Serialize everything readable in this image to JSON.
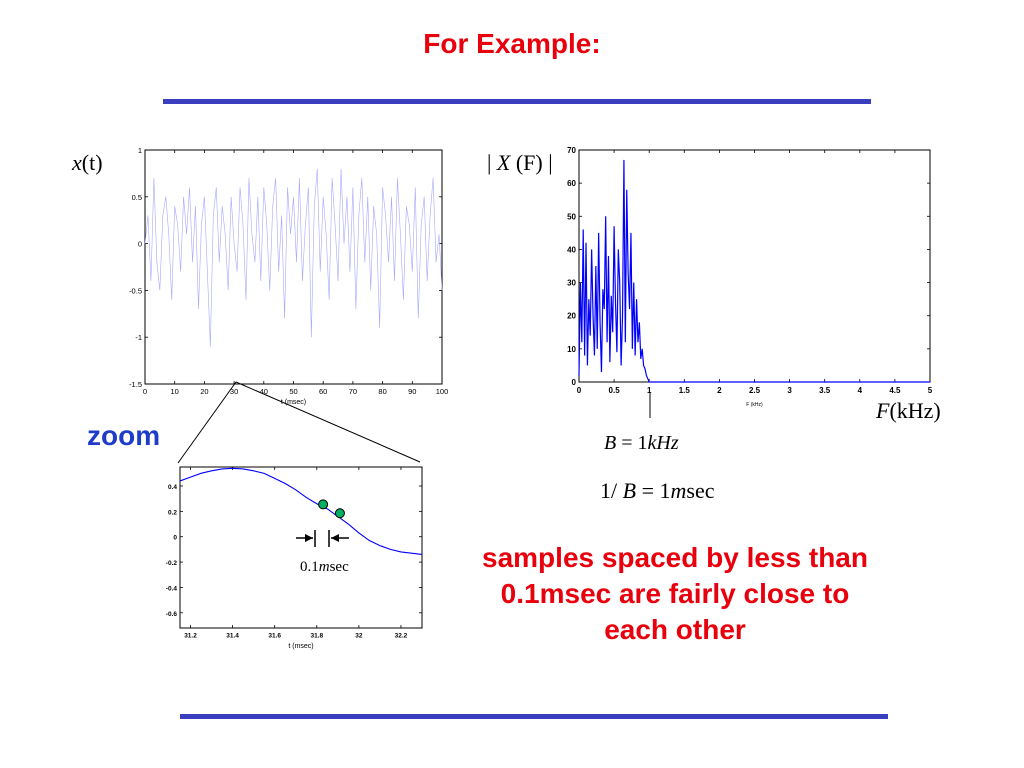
{
  "slide": {
    "title": "For Example:",
    "zoom_label": "zoom",
    "caption": "samples spaced by less than 0.1msec are fairly close to each other",
    "colors": {
      "title": "#e8000d",
      "rule": "#3a3fbf",
      "zoom": "#1f3cc8",
      "signal": "#0000ff",
      "marker": "#00b060"
    }
  },
  "labels": {
    "xt_main": "x",
    "xt_paren": "(t)",
    "Xf_main": "X",
    "Xf_paren": "(F)",
    "F_main": "F",
    "F_paren": "(kHz)",
    "B_lhs": "B",
    "B_eq": "= 1",
    "B_unit": "kHz",
    "inv_lhs": "1/",
    "inv_B": "B",
    "inv_eq": "= 1",
    "inv_m": "m",
    "inv_unit": "sec",
    "spacing_num": "0.1",
    "spacing_m": "m",
    "spacing_unit": "sec"
  },
  "chart_data": [
    {
      "id": "time-signal",
      "type": "line",
      "xlabel": "t (msec)",
      "ylabel": "",
      "xlim": [
        0,
        100
      ],
      "ylim": [
        -1.5,
        1
      ],
      "xticks": [
        0,
        10,
        20,
        30,
        40,
        50,
        60,
        70,
        80,
        90,
        100
      ],
      "yticks": [
        1,
        0.5,
        0,
        -0.5,
        -1,
        -1.5
      ],
      "series": [
        {
          "x": [
            0,
            1,
            2,
            3,
            4,
            5,
            6,
            7,
            8,
            9,
            10,
            11,
            12,
            13,
            14,
            15,
            16,
            17,
            18,
            19,
            20,
            21,
            22,
            23,
            24,
            25,
            26,
            27,
            28,
            29,
            30,
            31,
            32,
            33,
            34,
            35,
            36,
            37,
            38,
            39,
            40,
            41,
            42,
            43,
            44,
            45,
            46,
            47,
            48,
            49,
            50,
            51,
            52,
            53,
            54,
            55,
            56,
            57,
            58,
            59,
            60,
            61,
            62,
            63,
            64,
            65,
            66,
            67,
            68,
            69,
            70,
            71,
            72,
            73,
            74,
            75,
            76,
            77,
            78,
            79,
            80,
            81,
            82,
            83,
            84,
            85,
            86,
            87,
            88,
            89,
            90,
            91,
            92,
            93,
            94,
            95,
            96,
            97,
            98,
            99,
            100
          ],
          "y": [
            0,
            0.3,
            -0.4,
            0.7,
            -0.2,
            -0.5,
            0.3,
            0.5,
            0.1,
            -0.6,
            0.4,
            0.2,
            -0.3,
            0.5,
            0.1,
            0.6,
            -0.2,
            0.4,
            -0.7,
            0.2,
            0.5,
            -0.3,
            -1.1,
            0.3,
            0.6,
            -0.2,
            0.4,
            0.1,
            -0.5,
            0.5,
            0.0,
            -0.3,
            0.6,
            0.2,
            -0.6,
            0.7,
            0.1,
            -0.2,
            0.5,
            -0.4,
            0.6,
            0.2,
            -0.5,
            0.4,
            0.7,
            -0.3,
            0.3,
            -0.8,
            0.6,
            0.1,
            0.5,
            -0.2,
            0.7,
            -0.4,
            0.2,
            0.6,
            -1.0,
            0.4,
            0.8,
            -0.3,
            0.5,
            0.1,
            -0.6,
            0.7,
            0.2,
            -0.4,
            0.8,
            0.0,
            0.5,
            -0.3,
            0.6,
            -0.7,
            0.3,
            0.7,
            -0.2,
            0.5,
            -0.5,
            0.4,
            0.1,
            -0.9,
            0.6,
            0.3,
            -0.2,
            0.5,
            -0.4,
            0.7,
            0.1,
            -0.6,
            0.4,
            0.2,
            -0.3,
            0.6,
            -0.8,
            0.2,
            0.5,
            -0.4,
            0.3,
            0.7,
            -0.2,
            0.1,
            -0.5
          ]
        }
      ]
    },
    {
      "id": "spectrum",
      "type": "line",
      "xlabel": "F (kHz)",
      "ylabel": "",
      "xlim": [
        0,
        5
      ],
      "ylim": [
        0,
        70
      ],
      "xticks": [
        0,
        0.5,
        1,
        1.5,
        2,
        2.5,
        3,
        3.5,
        4,
        4.5,
        5
      ],
      "yticks": [
        0,
        10,
        20,
        30,
        40,
        50,
        60,
        70
      ],
      "series": [
        {
          "x": [
            0,
            0.02,
            0.04,
            0.06,
            0.08,
            0.1,
            0.12,
            0.14,
            0.16,
            0.18,
            0.2,
            0.22,
            0.24,
            0.26,
            0.28,
            0.3,
            0.32,
            0.34,
            0.36,
            0.38,
            0.4,
            0.42,
            0.44,
            0.46,
            0.48,
            0.5,
            0.52,
            0.54,
            0.56,
            0.58,
            0.6,
            0.62,
            0.64,
            0.66,
            0.68,
            0.7,
            0.72,
            0.74,
            0.76,
            0.78,
            0.8,
            0.82,
            0.84,
            0.86,
            0.88,
            0.9,
            0.92,
            0.94,
            0.96,
            0.98,
            1.0,
            1.1,
            1.5,
            2,
            2.5,
            3,
            3.5,
            4,
            4.5,
            5
          ],
          "y": [
            2,
            30,
            12,
            46,
            8,
            42,
            5,
            25,
            14,
            40,
            20,
            8,
            35,
            10,
            45,
            18,
            3,
            28,
            22,
            50,
            12,
            38,
            6,
            26,
            15,
            47,
            24,
            9,
            40,
            30,
            5,
            20,
            67,
            12,
            58,
            33,
            22,
            45,
            10,
            30,
            8,
            25,
            12,
            18,
            7,
            10,
            5,
            4,
            2,
            1,
            0,
            0,
            0,
            0,
            0,
            0,
            0,
            0,
            0,
            0
          ]
        }
      ],
      "markers": [
        {
          "x": 1,
          "label": "B = 1kHz"
        }
      ]
    },
    {
      "id": "zoomed-signal",
      "type": "line",
      "xlabel": "t (msec)",
      "ylabel": "",
      "xlim": [
        31.15,
        32.3
      ],
      "ylim": [
        -0.72,
        0.55
      ],
      "xticks": [
        31.2,
        31.4,
        31.6,
        31.8,
        32,
        32.2
      ],
      "yticks": [
        0.4,
        0.2,
        0,
        -0.2,
        -0.4,
        -0.6
      ],
      "series": [
        {
          "x": [
            31.15,
            31.2,
            31.25,
            31.3,
            31.35,
            31.4,
            31.45,
            31.5,
            31.55,
            31.6,
            31.65,
            31.7,
            31.75,
            31.8,
            31.85,
            31.9,
            31.95,
            32.0,
            32.05,
            32.1,
            32.15,
            32.2,
            32.25,
            32.3
          ],
          "y": [
            0.44,
            0.47,
            0.5,
            0.52,
            0.535,
            0.54,
            0.535,
            0.52,
            0.5,
            0.46,
            0.42,
            0.37,
            0.31,
            0.26,
            0.22,
            0.16,
            0.1,
            0.03,
            -0.03,
            -0.07,
            -0.1,
            -0.12,
            -0.13,
            -0.14
          ]
        }
      ],
      "samples": [
        {
          "x": 31.83,
          "y": 0.255
        },
        {
          "x": 31.91,
          "y": 0.185
        }
      ]
    }
  ]
}
